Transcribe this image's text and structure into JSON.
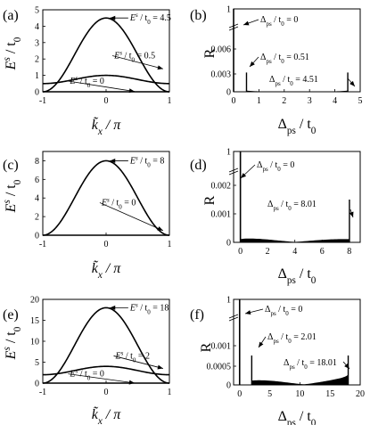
{
  "chart_data": [
    {
      "panel": "(a)",
      "type": "line",
      "xlabel": "k̃x / π",
      "ylabel": "Es / t0",
      "xlim": [
        -1,
        1
      ],
      "ylim": [
        0,
        5
      ],
      "xticks": [
        "-1",
        "0",
        "1"
      ],
      "yticks": [
        "0",
        "1",
        "2",
        "3",
        "4",
        "5"
      ],
      "series": [
        {
          "amplitude": 4.5,
          "offset": 0
        },
        {
          "amplitude": 0.5,
          "offset": 0.5
        },
        {
          "amplitude": 0,
          "offset": 0
        }
      ],
      "annotations": [
        {
          "label": "Es / t0 = 4.5",
          "point": [
            0.06,
            4.5
          ],
          "text_at": [
            0.35,
            4.5
          ]
        },
        {
          "label": "Es / t0 = 0.5",
          "point": [
            0.9,
            1.4
          ],
          "text_at": [
            0.1,
            2.2
          ]
        },
        {
          "label": "Es / t0 = 0",
          "point": [
            0.45,
            0.02
          ],
          "text_at": [
            -0.6,
            0.65
          ]
        }
      ]
    },
    {
      "panel": "(b)",
      "type": "line",
      "xlabel": "Δps / t0",
      "ylabel": "R",
      "xlim": [
        0,
        5
      ],
      "xticks": [
        "0",
        "1",
        "2",
        "3",
        "4",
        "5"
      ],
      "yticks": [
        "0",
        "0.003",
        "0.006",
        "1"
      ],
      "broken_axis": true,
      "spikes": [
        {
          "x": 0.0,
          "height": 1
        },
        {
          "x": 0.51,
          "height": 0.0027
        },
        {
          "x": 4.51,
          "height": 0.0027
        }
      ],
      "annotations": [
        {
          "label": "Δps / t0 = 0"
        },
        {
          "label": "Δps / t0 = 0.51"
        },
        {
          "label": "Δps / t0 = 4.51"
        }
      ]
    },
    {
      "panel": "(c)",
      "type": "line",
      "xlabel": "k̃x / π",
      "ylabel": "Es / t0",
      "xlim": [
        -1,
        1
      ],
      "ylim": [
        0,
        9
      ],
      "xticks": [
        "-1",
        "0",
        "1"
      ],
      "yticks": [
        "0",
        "2",
        "4",
        "6",
        "8"
      ],
      "series": [
        {
          "amplitude": 8,
          "offset": 0
        },
        {
          "amplitude": 0,
          "offset": 0
        }
      ],
      "annotations": [
        {
          "label": "Es / t0 = 8",
          "point": [
            0.06,
            8
          ],
          "text_at": [
            0.35,
            8
          ]
        },
        {
          "label": "Es / t0 = 0",
          "point": [
            0.9,
            0.5
          ],
          "text_at": [
            -0.1,
            3.5
          ]
        }
      ]
    },
    {
      "panel": "(d)",
      "type": "line",
      "xlabel": "Δps / t0",
      "ylabel": "R",
      "xlim": [
        -0.5,
        8.8
      ],
      "xticks": [
        "0",
        "2",
        "4",
        "6",
        "8"
      ],
      "yticks": [
        "0",
        "0.001",
        "0.002",
        "1"
      ],
      "broken_axis": true,
      "spikes": [
        {
          "x": 0.0,
          "height": 1
        },
        {
          "x": 8.01,
          "height": 0.0015
        }
      ],
      "annotations": [
        {
          "label": "Δps / t0 = 0"
        },
        {
          "label": "Δps / t0 = 8.01"
        }
      ]
    },
    {
      "panel": "(e)",
      "type": "line",
      "xlabel": "k̃x / π",
      "ylabel": "Es / t0",
      "xlim": [
        -1,
        1
      ],
      "ylim": [
        0,
        20
      ],
      "xticks": [
        "-1",
        "0",
        "1"
      ],
      "yticks": [
        "0",
        "5",
        "10",
        "15",
        "20"
      ],
      "series": [
        {
          "amplitude": 18,
          "offset": 0
        },
        {
          "amplitude": 2,
          "offset": 2
        },
        {
          "amplitude": 0,
          "offset": 0
        }
      ],
      "annotations": [
        {
          "label": "Es / t0 = 18",
          "point": [
            0.06,
            18
          ],
          "text_at": [
            0.35,
            18
          ]
        },
        {
          "label": "Es / t0 = 2",
          "point": [
            0.9,
            3.5
          ],
          "text_at": [
            0.12,
            6.5
          ]
        },
        {
          "label": "Es / t0 = 0",
          "point": [
            0.45,
            0.02
          ],
          "text_at": [
            -0.6,
            2.2
          ]
        }
      ]
    },
    {
      "panel": "(f)",
      "type": "line",
      "xlabel": "Δps / t0",
      "ylabel": "R",
      "xlim": [
        -1,
        20
      ],
      "xticks": [
        "0",
        "5",
        "10",
        "15",
        "20"
      ],
      "yticks": [
        "0",
        "0.0005",
        "0.001",
        "1"
      ],
      "broken_axis": true,
      "spikes": [
        {
          "x": 0.0,
          "height": 1
        },
        {
          "x": 2.01,
          "height": 0.00075
        },
        {
          "x": 18.01,
          "height": 0.00075
        }
      ],
      "annotations": [
        {
          "label": "Δps / t0 = 0"
        },
        {
          "label": "Δps / t0 = 2.01"
        },
        {
          "label": "Δps / t0 = 18.01"
        }
      ]
    }
  ]
}
